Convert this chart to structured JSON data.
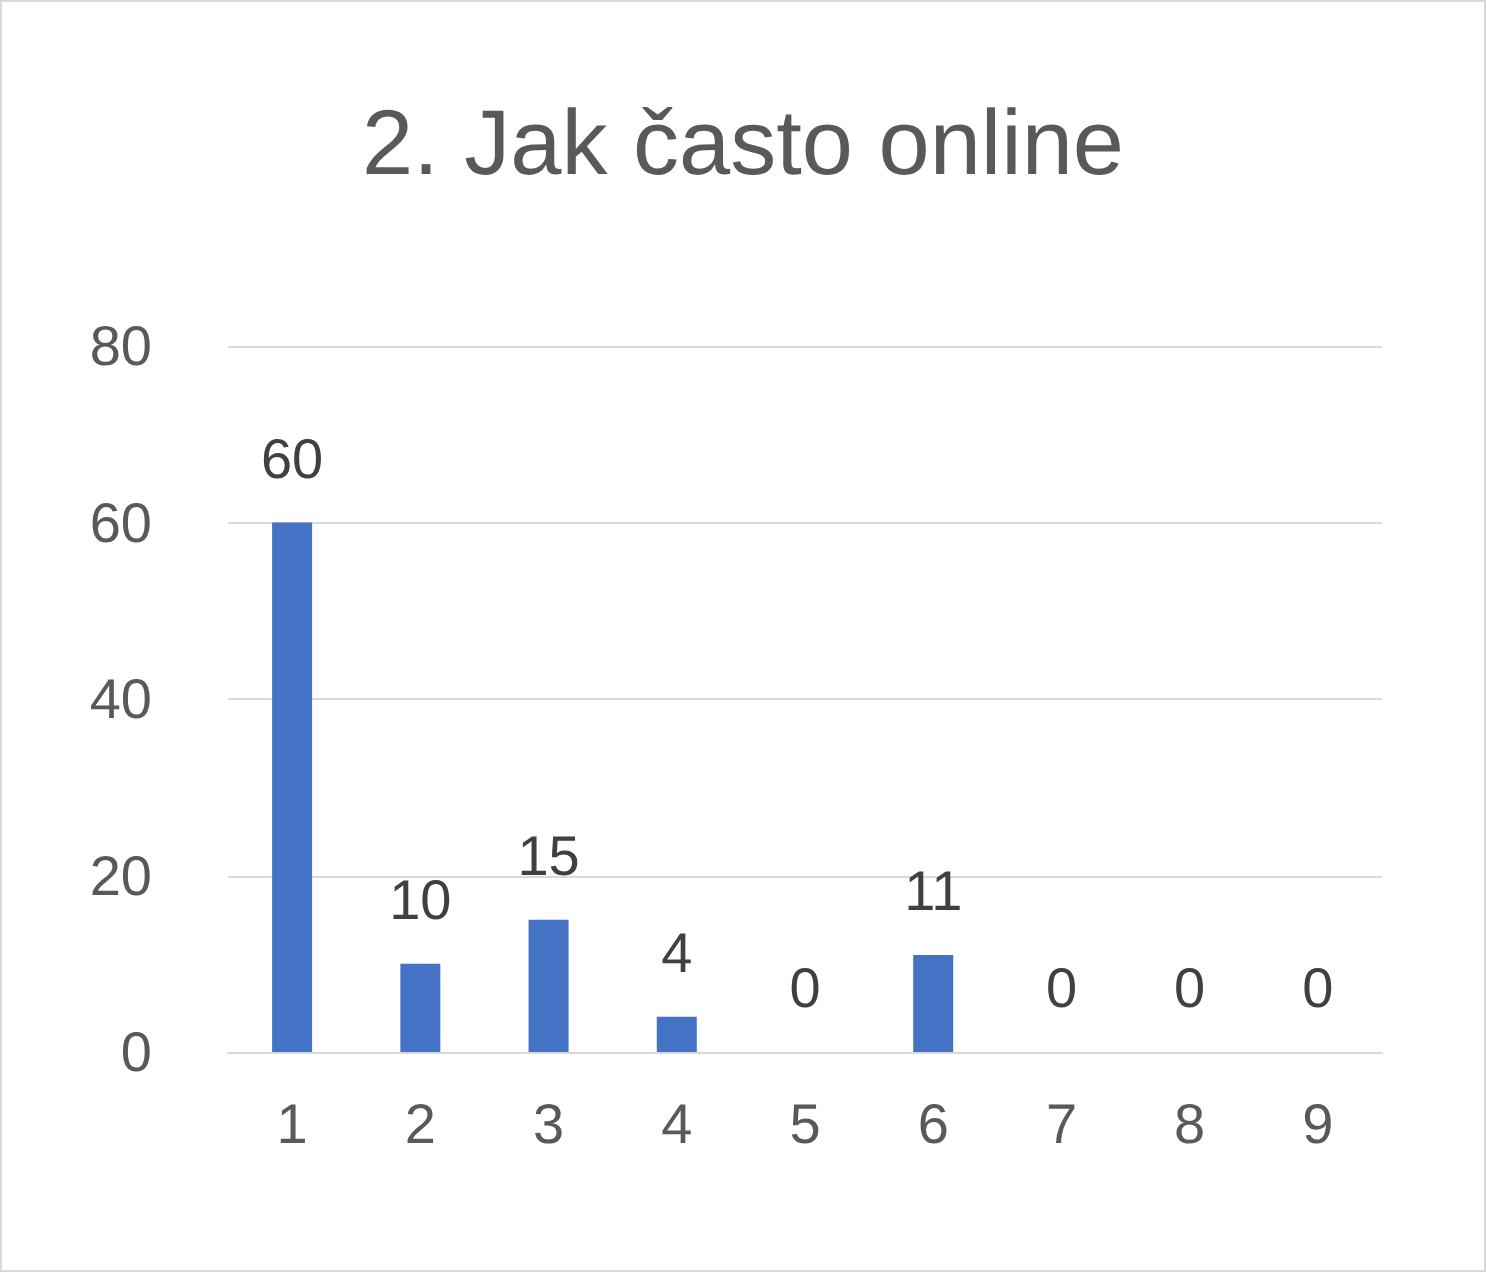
{
  "chart_data": {
    "type": "bar",
    "title": "2. Jak často online",
    "categories": [
      "1",
      "2",
      "3",
      "4",
      "5",
      "6",
      "7",
      "8",
      "9"
    ],
    "values": [
      60,
      10,
      15,
      4,
      0,
      11,
      0,
      0,
      0
    ],
    "color": "#4472c4",
    "ylim": [
      0,
      80
    ],
    "yticks": [
      0,
      20,
      40,
      60,
      80
    ],
    "grid": "y",
    "data_labels": true
  }
}
